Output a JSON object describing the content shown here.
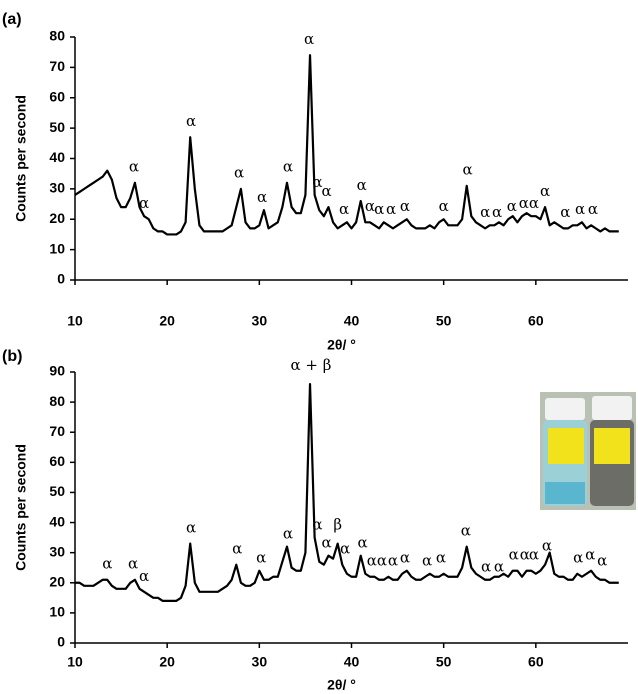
{
  "chart_data": [
    {
      "type": "line",
      "label": "(a)",
      "x_label": "2θ/ °",
      "y_label": "Counts per second",
      "xlim": [
        10,
        70
      ],
      "xticks": [
        10,
        20,
        30,
        40,
        50,
        60
      ],
      "ylim": [
        0,
        80
      ],
      "yticks": [
        0,
        10,
        20,
        30,
        40,
        50,
        60,
        70,
        80
      ],
      "grid": false,
      "x": [
        10,
        10.5,
        11,
        11.5,
        12,
        12.5,
        13,
        13.5,
        14,
        14.5,
        15,
        15.5,
        16,
        16.5,
        17,
        17.5,
        18,
        18.5,
        19,
        19.5,
        20,
        20.5,
        21,
        21.5,
        22,
        22.5,
        23,
        23.5,
        24,
        24.5,
        25,
        25.5,
        26,
        26.5,
        27,
        27.5,
        28,
        28.5,
        29,
        29.5,
        30,
        30.5,
        31,
        31.5,
        32,
        32.5,
        33,
        33.5,
        34,
        34.5,
        35,
        35.5,
        36,
        36.5,
        37,
        37.5,
        38,
        38.5,
        39,
        39.5,
        40,
        40.5,
        41,
        41.5,
        42,
        42.5,
        43,
        43.5,
        44,
        44.5,
        45,
        45.5,
        46,
        46.5,
        47,
        47.5,
        48,
        48.5,
        49,
        49.5,
        50,
        50.5,
        51,
        51.5,
        52,
        52.5,
        53,
        53.5,
        54,
        54.5,
        55,
        55.5,
        56,
        56.5,
        57,
        57.5,
        58,
        58.5,
        59,
        59.5,
        60,
        60.5,
        61,
        61.5,
        62,
        62.5,
        63,
        63.5,
        64,
        64.5,
        65,
        65.5,
        66,
        66.5,
        67,
        67.5,
        68,
        68.5,
        69
      ],
      "series": [
        {
          "color": "#000000",
          "values": [
            28,
            29,
            30,
            31,
            32,
            33,
            34,
            36,
            33,
            27,
            24,
            24,
            27,
            32,
            24,
            21,
            20,
            17,
            16,
            16,
            15,
            15,
            15,
            16,
            19,
            47,
            30,
            18,
            16,
            16,
            16,
            16,
            16,
            17,
            18,
            24,
            30,
            19,
            17,
            17,
            18,
            23,
            17,
            18,
            19,
            24,
            32,
            24,
            22,
            22,
            28,
            74,
            28,
            23,
            21,
            24,
            19,
            17,
            18,
            19,
            17,
            19,
            26,
            19,
            19,
            18,
            17,
            19,
            18,
            17,
            18,
            19,
            20,
            18,
            17,
            17,
            17,
            18,
            17,
            19,
            20,
            18,
            18,
            18,
            20,
            31,
            21,
            19,
            18,
            17,
            18,
            18,
            19,
            18,
            20,
            21,
            19,
            21,
            22,
            21,
            21,
            20,
            24,
            18,
            19,
            18,
            17,
            17,
            18,
            18,
            19,
            17,
            18,
            17,
            16,
            17,
            16,
            16,
            16
          ]
        }
      ],
      "annotations": [
        {
          "text": "α",
          "x": 16.4,
          "y": 37
        },
        {
          "text": "α",
          "x": 17.5,
          "y": 25
        },
        {
          "text": "α",
          "x": 22.6,
          "y": 52
        },
        {
          "text": "α",
          "x": 27.8,
          "y": 35
        },
        {
          "text": "α",
          "x": 30.3,
          "y": 27
        },
        {
          "text": "α",
          "x": 33.1,
          "y": 37
        },
        {
          "text": "α",
          "x": 35.4,
          "y": 79
        },
        {
          "text": "α",
          "x": 36.3,
          "y": 32
        },
        {
          "text": "α",
          "x": 37.3,
          "y": 29
        },
        {
          "text": "α",
          "x": 39.2,
          "y": 23
        },
        {
          "text": "α",
          "x": 41.1,
          "y": 31
        },
        {
          "text": "α",
          "x": 42,
          "y": 24
        },
        {
          "text": "α",
          "x": 43,
          "y": 23
        },
        {
          "text": "α",
          "x": 44.3,
          "y": 23
        },
        {
          "text": "α",
          "x": 45.8,
          "y": 24
        },
        {
          "text": "α",
          "x": 50,
          "y": 24
        },
        {
          "text": "α",
          "x": 52.6,
          "y": 36
        },
        {
          "text": "α",
          "x": 54.5,
          "y": 22
        },
        {
          "text": "α",
          "x": 55.8,
          "y": 22
        },
        {
          "text": "α",
          "x": 57.4,
          "y": 24
        },
        {
          "text": "α",
          "x": 58.7,
          "y": 25
        },
        {
          "text": "α",
          "x": 59.8,
          "y": 25
        },
        {
          "text": "α",
          "x": 61,
          "y": 29
        },
        {
          "text": "α",
          "x": 63.2,
          "y": 22
        },
        {
          "text": "α",
          "x": 64.8,
          "y": 23
        },
        {
          "text": "α",
          "x": 66.2,
          "y": 23
        }
      ]
    },
    {
      "type": "line",
      "label": "(b)",
      "x_label": "2θ/ °",
      "y_label": "Counts per second",
      "xlim": [
        10,
        70
      ],
      "xticks": [
        10,
        20,
        30,
        40,
        50,
        60
      ],
      "ylim": [
        0,
        90
      ],
      "yticks": [
        0,
        10,
        20,
        30,
        40,
        50,
        60,
        70,
        80,
        90
      ],
      "grid": false,
      "x": [
        10,
        10.5,
        11,
        11.5,
        12,
        12.5,
        13,
        13.5,
        14,
        14.5,
        15,
        15.5,
        16,
        16.5,
        17,
        17.5,
        18,
        18.5,
        19,
        19.5,
        20,
        20.5,
        21,
        21.5,
        22,
        22.5,
        23,
        23.5,
        24,
        24.5,
        25,
        25.5,
        26,
        26.5,
        27,
        27.5,
        28,
        28.5,
        29,
        29.5,
        30,
        30.5,
        31,
        31.5,
        32,
        32.5,
        33,
        33.5,
        34,
        34.5,
        35,
        35.5,
        36,
        36.5,
        37,
        37.5,
        38,
        38.5,
        39,
        39.5,
        40,
        40.5,
        41,
        41.5,
        42,
        42.5,
        43,
        43.5,
        44,
        44.5,
        45,
        45.5,
        46,
        46.5,
        47,
        47.5,
        48,
        48.5,
        49,
        49.5,
        50,
        50.5,
        51,
        51.5,
        52,
        52.5,
        53,
        53.5,
        54,
        54.5,
        55,
        55.5,
        56,
        56.5,
        57,
        57.5,
        58,
        58.5,
        59,
        59.5,
        60,
        60.5,
        61,
        61.5,
        62,
        62.5,
        63,
        63.5,
        64,
        64.5,
        65,
        65.5,
        66,
        66.5,
        67,
        67.5,
        68,
        68.5,
        69
      ],
      "series": [
        {
          "color": "#000000",
          "values": [
            20,
            20,
            19,
            19,
            19,
            20,
            21,
            21,
            19,
            18,
            18,
            18,
            20,
            21,
            18,
            17,
            16,
            15,
            15,
            14,
            14,
            14,
            14,
            15,
            19,
            33,
            20,
            17,
            17,
            17,
            17,
            17,
            18,
            19,
            21,
            26,
            20,
            19,
            19,
            20,
            24,
            21,
            21,
            22,
            22,
            27,
            32,
            25,
            24,
            24,
            30,
            86,
            35,
            27,
            26,
            29,
            28,
            33,
            26,
            23,
            22,
            22,
            29,
            23,
            22,
            22,
            21,
            21,
            22,
            21,
            21,
            23,
            24,
            22,
            21,
            21,
            22,
            23,
            22,
            22,
            23,
            22,
            22,
            22,
            25,
            32,
            25,
            23,
            22,
            21,
            21,
            22,
            22,
            23,
            22,
            24,
            24,
            22,
            24,
            24,
            23,
            24,
            26,
            30,
            23,
            22,
            22,
            21,
            21,
            23,
            22,
            23,
            24,
            22,
            21,
            21,
            20,
            20,
            20
          ]
        }
      ],
      "annotations": [
        {
          "text": "α",
          "x": 13.5,
          "y": 26
        },
        {
          "text": "α",
          "x": 16.3,
          "y": 26
        },
        {
          "text": "α",
          "x": 17.5,
          "y": 22
        },
        {
          "text": "α",
          "x": 22.6,
          "y": 38
        },
        {
          "text": "α",
          "x": 27.6,
          "y": 31
        },
        {
          "text": "α",
          "x": 30.2,
          "y": 28
        },
        {
          "text": "α",
          "x": 33.1,
          "y": 36
        },
        {
          "text": "α + β",
          "x": 35.6,
          "y": 92
        },
        {
          "text": "α",
          "x": 36.3,
          "y": 39
        },
        {
          "text": "α",
          "x": 37.3,
          "y": 33
        },
        {
          "text": "β",
          "x": 38.5,
          "y": 39
        },
        {
          "text": "α",
          "x": 39.3,
          "y": 31
        },
        {
          "text": "α",
          "x": 41.2,
          "y": 33
        },
        {
          "text": "α",
          "x": 42.2,
          "y": 27
        },
        {
          "text": "α",
          "x": 43.3,
          "y": 27
        },
        {
          "text": "α",
          "x": 44.5,
          "y": 27
        },
        {
          "text": "α",
          "x": 45.8,
          "y": 28
        },
        {
          "text": "α",
          "x": 48.2,
          "y": 27
        },
        {
          "text": "α",
          "x": 49.7,
          "y": 28
        },
        {
          "text": "α",
          "x": 52.4,
          "y": 37
        },
        {
          "text": "α",
          "x": 54.6,
          "y": 25
        },
        {
          "text": "α",
          "x": 56,
          "y": 25
        },
        {
          "text": "α",
          "x": 57.6,
          "y": 29
        },
        {
          "text": "α",
          "x": 58.8,
          "y": 29
        },
        {
          "text": "α",
          "x": 59.8,
          "y": 29
        },
        {
          "text": "α",
          "x": 61.2,
          "y": 32
        },
        {
          "text": "α",
          "x": 64.6,
          "y": 28
        },
        {
          "text": "α",
          "x": 65.9,
          "y": 29
        },
        {
          "text": "α",
          "x": 67.2,
          "y": 27
        }
      ]
    }
  ]
}
